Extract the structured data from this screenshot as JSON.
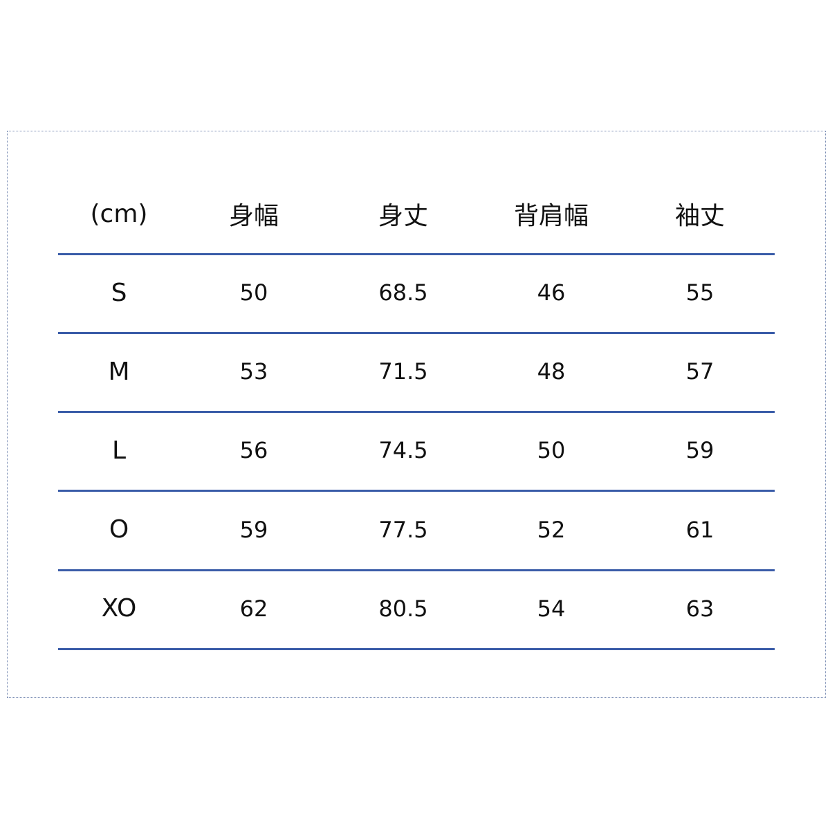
{
  "header": [
    "(cm)",
    "身幅",
    "身丈",
    "背肩幅",
    "袖丈"
  ],
  "rows": [
    [
      "S",
      "50",
      "68.5",
      "46",
      "55"
    ],
    [
      "M",
      "53",
      "71.5",
      "48",
      "57"
    ],
    [
      "L",
      "56",
      "74.5",
      "50",
      "59"
    ],
    [
      "O",
      "59",
      "77.5",
      "52",
      "61"
    ],
    [
      "XO",
      "62",
      "80.5",
      "54",
      "63"
    ]
  ],
  "colors": {
    "rule": "#3a5ca8",
    "frame": "#7d8fb5"
  }
}
